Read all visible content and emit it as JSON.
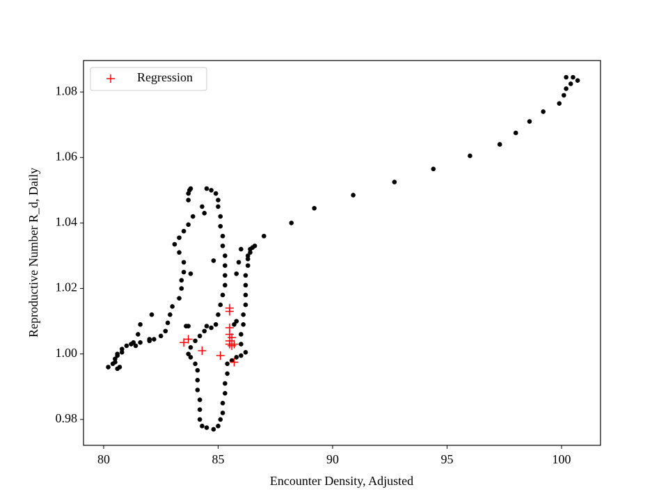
{
  "chart_data": {
    "type": "scatter",
    "xlabel": "Encounter Density, Adjusted",
    "ylabel": "Reproductive Number R_d, Daily",
    "xlim": [
      79.12,
      101.7
    ],
    "ylim": [
      0.9721,
      1.0896
    ],
    "xticks": [
      80,
      85,
      90,
      95,
      100
    ],
    "yticks": [
      0.98,
      {
        "value": 1.0,
        "label": "1.00"
      },
      1.02,
      1.04,
      1.06,
      1.08
    ],
    "legend": "upper left",
    "series": [
      {
        "color": "#000000",
        "marker": "dot",
        "x": [
          100.7,
          100.5,
          100.2,
          100.4,
          100.2,
          100.1,
          99.9,
          99.2,
          98.6,
          98.0,
          97.3,
          96.0,
          94.4,
          92.7,
          90.9,
          89.2,
          88.2,
          87.0,
          86.6,
          86.5,
          86.4,
          86.3,
          80.2,
          80.4,
          80.5,
          80.6,
          80.8,
          81.2,
          81.4,
          81.6,
          82.0,
          82.2,
          82.5,
          82.7,
          82.8,
          82.9,
          83.0,
          83.3,
          83.4,
          83.4,
          83.5,
          83.5,
          83.3,
          83.1,
          83.3,
          83.5,
          83.7,
          83.9,
          84.3,
          84.4,
          83.7,
          83.8,
          83.75,
          83.7,
          81.3,
          81.0,
          80.8,
          80.6,
          80.5,
          80.7,
          80.6,
          81.6,
          81.5,
          82.1,
          82.0,
          84.5,
          84.7,
          84.9,
          85.0,
          85.0,
          85.1,
          85.1,
          85.2,
          85.2,
          85.3,
          85.3,
          85.3,
          85.3,
          85.2,
          85.1,
          85.0,
          84.9,
          84.7,
          84.4,
          84.2,
          84.0,
          83.8,
          83.7,
          83.8,
          84.0,
          84.1,
          84.1,
          84.1,
          84.2,
          84.2,
          84.2,
          84.3,
          84.5,
          84.8,
          85.0,
          85.1,
          85.2,
          85.2,
          85.3,
          85.3,
          85.4,
          85.4,
          85.6,
          85.8,
          86.0,
          86.2,
          86.0,
          86.0,
          86.1,
          86.1,
          86.2,
          86.2,
          86.2,
          86.2,
          86.3,
          86.3,
          86.4,
          85.9,
          86.0,
          85.8,
          84.8,
          83.8,
          85.7,
          85.8,
          84.5,
          83.6,
          83.7
        ],
        "y": [
          1.0835,
          1.0845,
          1.0845,
          1.0825,
          1.081,
          1.079,
          1.0765,
          1.074,
          1.071,
          1.0675,
          1.064,
          1.0605,
          1.0565,
          1.0525,
          1.0485,
          1.0445,
          1.04,
          1.036,
          1.033,
          1.0325,
          1.031,
          1.029,
          0.996,
          0.997,
          0.9985,
          1.0,
          1.0015,
          1.003,
          1.0025,
          1.0035,
          1.004,
          1.0045,
          1.0055,
          1.007,
          1.0095,
          1.012,
          1.0145,
          1.017,
          1.02,
          1.0225,
          1.025,
          1.028,
          1.031,
          1.0335,
          1.0355,
          1.0375,
          1.0395,
          1.042,
          1.045,
          1.043,
          1.049,
          1.0505,
          1.05,
          1.047,
          1.0035,
          1.0025,
          1.0005,
          0.9995,
          0.9975,
          0.996,
          0.9955,
          1.009,
          1.006,
          1.012,
          1.0045,
          1.0505,
          1.05,
          1.049,
          1.047,
          1.045,
          1.042,
          1.039,
          1.036,
          1.033,
          1.03,
          1.027,
          1.024,
          1.021,
          1.018,
          1.015,
          1.012,
          1.009,
          1.008,
          1.007,
          1.0055,
          1.004,
          1.002,
          1.0,
          0.999,
          0.997,
          0.995,
          0.992,
          0.989,
          0.986,
          0.983,
          0.98,
          0.978,
          0.9775,
          0.977,
          0.978,
          0.98,
          0.982,
          0.985,
          0.988,
          0.991,
          0.994,
          0.997,
          0.998,
          0.999,
          0.9995,
          1.0005,
          1.003,
          1.006,
          1.009,
          1.012,
          1.015,
          1.018,
          1.021,
          1.024,
          1.027,
          1.03,
          1.032,
          1.028,
          1.032,
          1.0245,
          1.0285,
          1.0245,
          1.009,
          1.01,
          1.0085,
          1.0085,
          1.0085
        ]
      },
      {
        "name": "Regression",
        "color": "#ff0000",
        "marker": "plus",
        "x": [
          83.5,
          83.7,
          84.3,
          85.1,
          85.5,
          85.5,
          85.5,
          85.5,
          85.5,
          85.5,
          85.6,
          85.7,
          85.6,
          85.7
        ],
        "y": [
          1.0035,
          1.0045,
          1.001,
          0.9995,
          1.014,
          1.013,
          1.008,
          1.006,
          1.004,
          1.003,
          1.0025,
          1.003,
          1.005,
          0.9975
        ]
      }
    ]
  }
}
